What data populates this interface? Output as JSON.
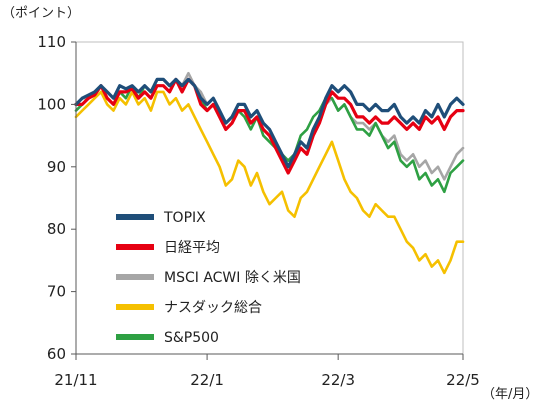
{
  "chart_data": {
    "type": "line",
    "y_unit_label": "（ポイント）",
    "x_unit_label": "（年/月）",
    "ylim": [
      60,
      110
    ],
    "y_ticks": [
      60,
      70,
      80,
      90,
      100,
      110
    ],
    "x_tick_labels": [
      "21/11",
      "22/1",
      "22/3",
      "22/5"
    ],
    "x_tick_positions": [
      0,
      21,
      42,
      62
    ],
    "x_range": [
      0,
      62
    ],
    "grid": false,
    "legend_position": "lower-left",
    "series": [
      {
        "name": "TOPIX",
        "color": "#1f4e79",
        "values": [
          100,
          101,
          101.5,
          102,
          103,
          102,
          101,
          103,
          102.5,
          103,
          102,
          103,
          102,
          104,
          104,
          103,
          104,
          103,
          104,
          103,
          101,
          100,
          101,
          99,
          97,
          98,
          100,
          100,
          98,
          99,
          97,
          96,
          94,
          92,
          90,
          92,
          94,
          93,
          96,
          98,
          101,
          103,
          102,
          103,
          102,
          100,
          100,
          99,
          100,
          99,
          99,
          100,
          98,
          97,
          98,
          97,
          99,
          98,
          100,
          98,
          100,
          101,
          100
        ]
      },
      {
        "name": "日経平均",
        "color": "#e60012",
        "values": [
          100,
          100,
          101,
          101.5,
          103,
          101,
          100,
          102,
          102,
          102.5,
          101,
          102,
          101,
          103,
          103,
          102,
          104,
          102,
          104,
          103,
          100,
          99,
          100,
          98,
          96,
          97,
          99,
          99,
          97,
          98,
          96,
          95,
          93,
          91,
          89,
          91,
          93,
          92,
          95,
          97,
          100,
          102,
          101,
          101,
          100,
          98,
          98,
          97,
          98,
          97,
          97,
          98,
          97,
          96,
          97,
          96,
          98,
          97,
          98,
          96,
          98,
          99,
          99
        ]
      },
      {
        "name": "MSCI ACWI 除く米国",
        "color": "#a6a6a6",
        "values": [
          100,
          101,
          101,
          102,
          103,
          102,
          101,
          102,
          102,
          103,
          102,
          103,
          102,
          104,
          104,
          103,
          104,
          103,
          105,
          103,
          102,
          100,
          101,
          99,
          97,
          98,
          99,
          99,
          97,
          98,
          96,
          95,
          93,
          92,
          91,
          92,
          94,
          93,
          96,
          98,
          100,
          101,
          99,
          100,
          98,
          97,
          97,
          96,
          97,
          95,
          94,
          95,
          92,
          91,
          92,
          90,
          91,
          89,
          90,
          88,
          90,
          92,
          93
        ]
      },
      {
        "name": "ナスダック総合",
        "color": "#f5c000",
        "values": [
          98,
          99,
          100,
          101,
          102,
          100,
          99,
          101,
          100,
          102,
          100,
          101,
          99,
          102,
          102,
          100,
          101,
          99,
          100,
          98,
          96,
          94,
          92,
          90,
          87,
          88,
          91,
          90,
          87,
          89,
          86,
          84,
          85,
          86,
          83,
          82,
          85,
          86,
          88,
          90,
          92,
          94,
          91,
          88,
          86,
          85,
          83,
          82,
          84,
          83,
          82,
          82,
          80,
          78,
          77,
          75,
          76,
          74,
          75,
          73,
          75,
          78,
          78
        ]
      },
      {
        "name": "S&P500",
        "color": "#2ea043",
        "values": [
          99,
          100,
          101,
          102,
          103,
          101,
          100,
          102,
          101,
          103,
          101,
          103,
          102,
          104,
          104,
          103,
          104,
          103,
          104,
          103,
          101,
          99,
          100,
          98,
          96,
          97,
          99,
          98,
          96,
          98,
          95,
          94,
          93,
          92,
          91,
          92,
          95,
          96,
          98,
          99,
          101,
          101,
          99,
          100,
          98,
          96,
          96,
          95,
          97,
          95,
          93,
          94,
          91,
          90,
          91,
          88,
          89,
          87,
          88,
          86,
          89,
          90,
          91
        ]
      }
    ]
  }
}
